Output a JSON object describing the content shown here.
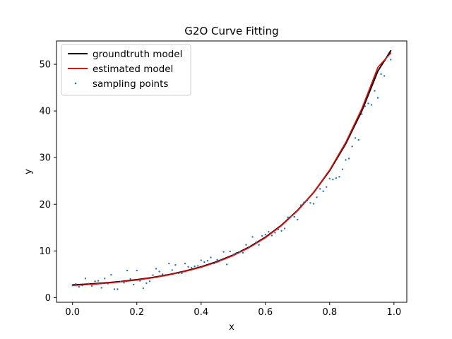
{
  "chart_data": {
    "type": "line",
    "title": "G2O Curve Fitting",
    "xlabel": "x",
    "ylabel": "y",
    "xlim": [
      -0.05,
      1.04
    ],
    "ylim": [
      -1,
      55
    ],
    "xticks": [
      "0.0",
      "0.2",
      "0.4",
      "0.6",
      "0.8",
      "1.0"
    ],
    "yticks": [
      "0",
      "10",
      "20",
      "30",
      "40",
      "50"
    ],
    "xtick_values": [
      0,
      0.2,
      0.4,
      0.6,
      0.8,
      1.0
    ],
    "ytick_values": [
      0,
      10,
      20,
      30,
      40,
      50
    ],
    "legend_position": "top-left",
    "grid": false,
    "series": [
      {
        "name": "groundtruth model",
        "kind": "line",
        "color": "#000000",
        "x": [
          0,
          0.05,
          0.1,
          0.15,
          0.2,
          0.25,
          0.3,
          0.35,
          0.4,
          0.45,
          0.5,
          0.55,
          0.6,
          0.65,
          0.7,
          0.75,
          0.8,
          0.85,
          0.9,
          0.95,
          0.99
        ],
        "y": [
          2.72,
          2.9,
          3.15,
          3.45,
          3.84,
          4.32,
          4.93,
          5.68,
          6.6,
          7.73,
          9.13,
          10.84,
          12.94,
          15.51,
          18.67,
          22.52,
          27.23,
          32.97,
          39.99,
          48.56,
          52.9
        ]
      },
      {
        "name": "estimated model",
        "kind": "line",
        "color": "#ff0000",
        "x": [
          0,
          0.05,
          0.1,
          0.15,
          0.2,
          0.25,
          0.3,
          0.35,
          0.4,
          0.45,
          0.5,
          0.55,
          0.6,
          0.65,
          0.7,
          0.75,
          0.8,
          0.85,
          0.9,
          0.95,
          0.99
        ],
        "y": [
          2.6,
          2.8,
          3.06,
          3.37,
          3.76,
          4.25,
          4.86,
          5.6,
          6.51,
          7.63,
          9.02,
          10.73,
          12.84,
          15.43,
          18.62,
          22.54,
          27.36,
          33.27,
          40.49,
          49.35,
          52.4
        ]
      },
      {
        "name": "sampling points",
        "kind": "scatter",
        "color": "#1f77b4",
        "x": [
          0,
          0.01,
          0.02,
          0.03,
          0.04,
          0.05,
          0.06,
          0.07,
          0.08,
          0.09,
          0.1,
          0.11,
          0.12,
          0.13,
          0.14,
          0.15,
          0.16,
          0.17,
          0.18,
          0.19,
          0.2,
          0.21,
          0.22,
          0.23,
          0.24,
          0.25,
          0.26,
          0.27,
          0.28,
          0.29,
          0.3,
          0.31,
          0.32,
          0.33,
          0.34,
          0.35,
          0.36,
          0.37,
          0.38,
          0.39,
          0.4,
          0.41,
          0.42,
          0.43,
          0.44,
          0.45,
          0.46,
          0.47,
          0.48,
          0.49,
          0.5,
          0.51,
          0.52,
          0.53,
          0.54,
          0.55,
          0.56,
          0.57,
          0.58,
          0.59,
          0.6,
          0.61,
          0.62,
          0.63,
          0.64,
          0.65,
          0.66,
          0.67,
          0.68,
          0.69,
          0.7,
          0.71,
          0.72,
          0.73,
          0.74,
          0.75,
          0.76,
          0.77,
          0.78,
          0.79,
          0.8,
          0.81,
          0.82,
          0.83,
          0.84,
          0.85,
          0.86,
          0.87,
          0.88,
          0.89,
          0.9,
          0.91,
          0.92,
          0.93,
          0.94,
          0.95,
          0.96,
          0.97,
          0.98,
          0.99
        ],
        "y": [
          2.6,
          2.9,
          2.3,
          2.6,
          4.1,
          3.0,
          2.5,
          3.5,
          3.6,
          2.1,
          4.1,
          3.0,
          4.9,
          1.8,
          1.8,
          3.4,
          3.2,
          5.8,
          4.0,
          2.8,
          5.8,
          3.6,
          2.0,
          3.1,
          3.5,
          4.8,
          6.2,
          5.6,
          5.0,
          4.9,
          7.3,
          5.9,
          7.0,
          5.2,
          5.2,
          7.3,
          6.6,
          6.4,
          6.7,
          6.8,
          8.0,
          7.6,
          7.9,
          8.6,
          7.3,
          8.1,
          8.1,
          9.8,
          7.1,
          9.9,
          9.2,
          9.6,
          9.8,
          9.6,
          11.3,
          10.9,
          13.0,
          11.8,
          11.3,
          13.2,
          13.5,
          14.1,
          13.3,
          13.9,
          14.6,
          14.3,
          14.8,
          17.2,
          17.4,
          17.3,
          16.7,
          19.8,
          20.4,
          20.8,
          20.3,
          20.1,
          21.5,
          23.3,
          22.8,
          23.7,
          25.5,
          25.3,
          25.6,
          25.9,
          27.5,
          29.5,
          29.8,
          32.4,
          34.2,
          33.8,
          39.3,
          41.0,
          41.6,
          41.3,
          44.3,
          42.8,
          47.9,
          47.5,
          51.6,
          51.0
        ]
      }
    ]
  }
}
